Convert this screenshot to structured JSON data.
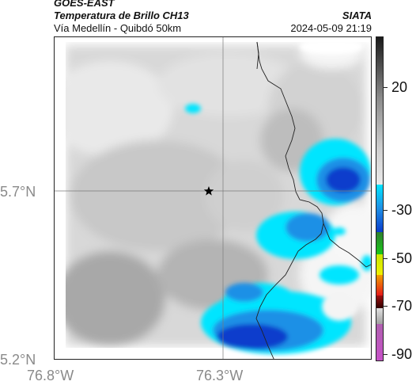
{
  "header": {
    "satellite": "GOES-EAST",
    "product": "Temperatura de Brillo CH13",
    "region": "Vía Medellín - Quibdó 50km",
    "agency": "SIATA",
    "timestamp": "2024-05-09 21:19"
  },
  "map": {
    "lat_ticks": [
      "5.7°N",
      "5.2°N"
    ],
    "lon_ticks": [
      "76.8°W",
      "76.3°W"
    ],
    "center_marker": "star-icon",
    "graticule": "gray-lines"
  },
  "colorbar": {
    "ticks": [
      "20",
      "-30",
      "-50",
      "-70",
      "-90"
    ],
    "colors": {
      "gray_low": "#f4f4f4",
      "gray_high": "#1a1a1a",
      "cyan": "#00e5ff",
      "blue": "#0a3ccc",
      "green": "#19c819",
      "yellow": "#f0f000",
      "red": "#e61919",
      "magenta": "#c850c8"
    }
  }
}
